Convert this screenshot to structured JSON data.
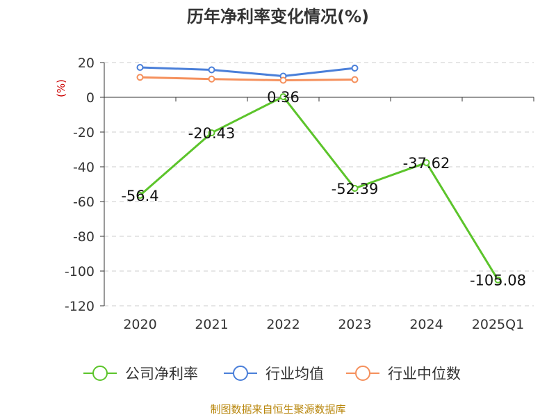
{
  "chart_data": {
    "type": "line",
    "title": "历年净利率变化情况(%)",
    "ylabel": "(%)",
    "xlabel": "",
    "categories": [
      "2020",
      "2021",
      "2022",
      "2023",
      "2024",
      "2025Q1"
    ],
    "ylim": [
      -120,
      20
    ],
    "yticks": [
      "20",
      "0",
      "-20",
      "-40",
      "-60",
      "-80",
      "-100",
      "-120"
    ],
    "grid": "horizontal dashed",
    "legend_position": "bottom",
    "series": [
      {
        "name": "公司净利率",
        "color": "#5cc42b",
        "values": [
          -56.4,
          -20.43,
          0.36,
          -52.39,
          -37.62,
          -105.08
        ],
        "labels": [
          "-56.4",
          "-20.43",
          "0.36",
          "-52.39",
          "-37.62",
          "-105.08"
        ]
      },
      {
        "name": "行业均值",
        "color": "#4a7fd9",
        "values": [
          17.2,
          15.8,
          12.2,
          16.8,
          null,
          null
        ]
      },
      {
        "name": "行业中位数",
        "color": "#f5905c",
        "values": [
          11.5,
          10.5,
          9.8,
          10.2,
          null,
          null
        ]
      }
    ]
  },
  "source": "制图数据来自恒生聚源数据库"
}
